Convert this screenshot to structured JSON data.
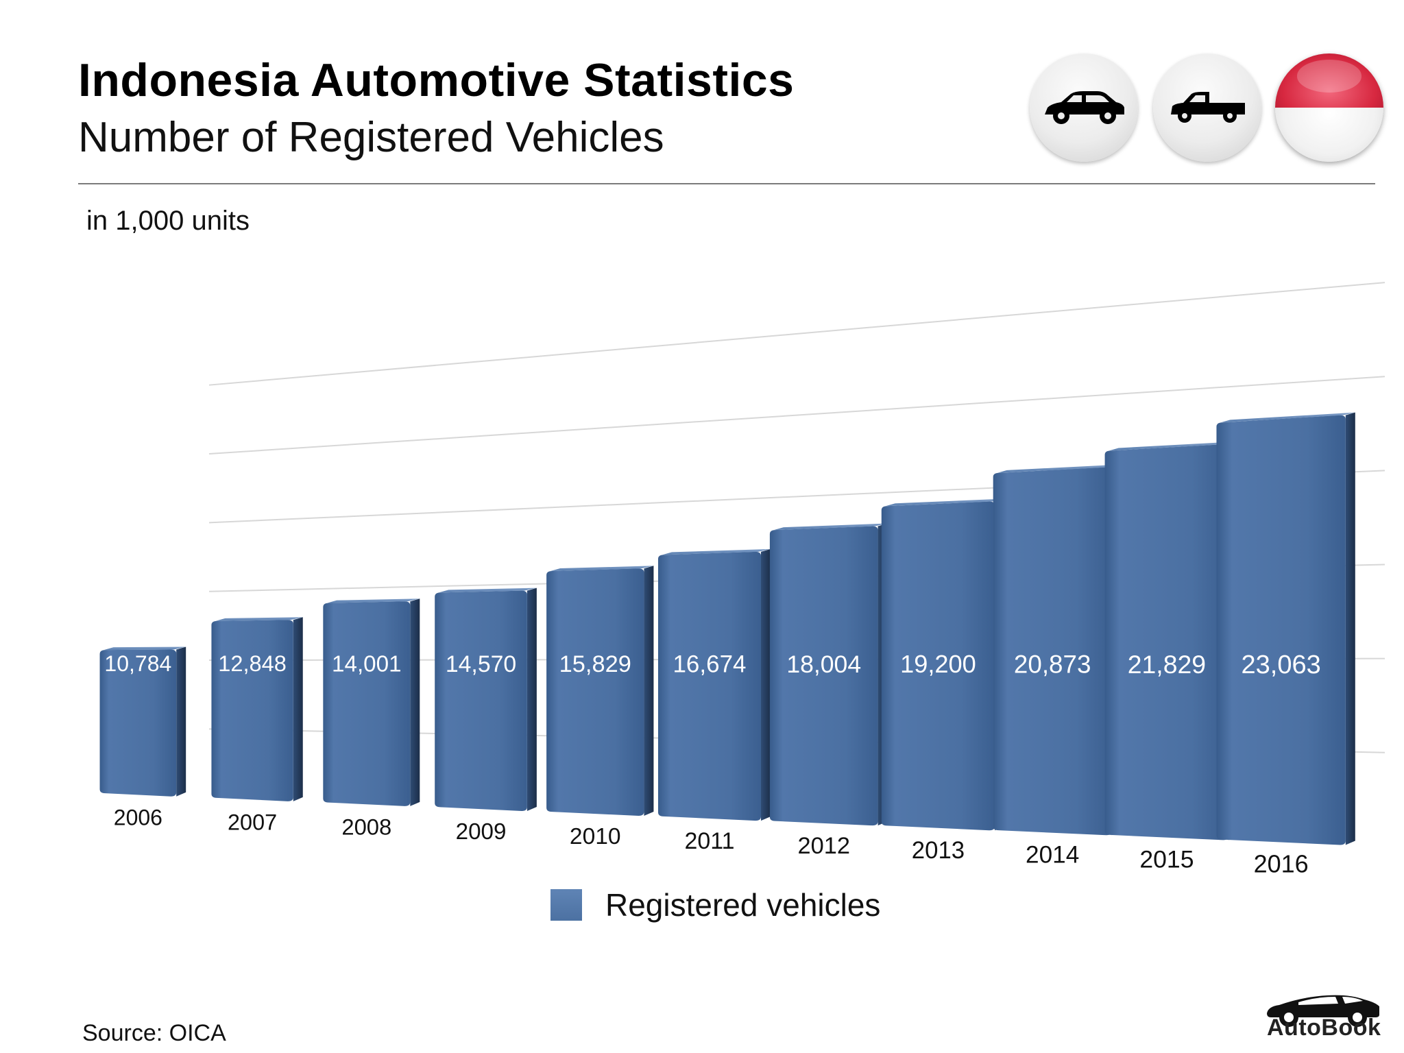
{
  "header": {
    "title": "Indonesia Automotive Statistics",
    "subtitle": "Number of Registered Vehicles"
  },
  "badges": {
    "car_icon": "car-icon",
    "truck_icon": "pickup-truck-icon",
    "flag_icon": "indonesia-flag-icon"
  },
  "unit_note": "in 1,000 units",
  "legend": {
    "label": "Registered vehicles",
    "color": "#4f75a8"
  },
  "source": "Source:  OICA",
  "brand": {
    "name": "AutoBook"
  },
  "chart_data": {
    "type": "bar",
    "title": "",
    "xlabel": "",
    "ylabel": "",
    "categories": [
      "2006",
      "2007",
      "2008",
      "2009",
      "2010",
      "2011",
      "2012",
      "2013",
      "2014",
      "2015",
      "2016"
    ],
    "series": [
      {
        "name": "Registered vehicles",
        "values": [
          10784,
          12848,
          14001,
          14570,
          15829,
          16674,
          18004,
          19200,
          20873,
          21829,
          23063
        ]
      }
    ],
    "data_labels": [
      "10,784",
      "12,848",
      "14,001",
      "14,570",
      "15,829",
      "16,674",
      "18,004",
      "19,200",
      "20,873",
      "21,829",
      "23,063"
    ],
    "ylim": [
      0,
      30000
    ],
    "grid": true,
    "legend_position": "bottom",
    "bar_color": "#4f75a8"
  }
}
